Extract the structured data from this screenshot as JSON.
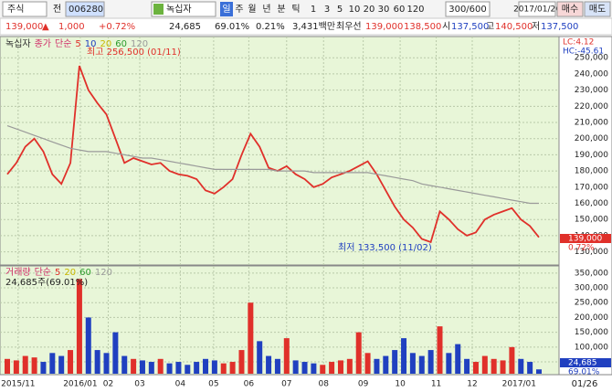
{
  "toolbar": {
    "market": "주식",
    "scope": "전",
    "code": "006280",
    "name": "녹십자",
    "periods": [
      "일",
      "주",
      "월",
      "년",
      "분",
      "틱",
      "1",
      "3",
      "5",
      "10",
      "20",
      "30",
      "60",
      "120"
    ],
    "count": "300/600",
    "date": "2017/01/26",
    "buy": "매수",
    "sell": "매도"
  },
  "quote": {
    "price": "139,000",
    "arrow": "▲",
    "change": "1,000",
    "change_pct": "+0.72%",
    "volume": "24,685",
    "volume_ratio": "69.01%",
    "turnover": "0.21%",
    "amount": "3,431백만",
    "best_label": "최우선",
    "ask": "139,000",
    "bid": "138,500",
    "open_label": "시",
    "open": "137,500",
    "high_label": "고",
    "high": "140,500",
    "low_label": "저",
    "low": "137,500"
  },
  "chart_data": {
    "type": "line",
    "legend": [
      "녹십자",
      "종가",
      "단순",
      "5",
      "10",
      "20",
      "60",
      "120"
    ],
    "series": [
      {
        "name": "종가",
        "color": "#e0302a",
        "values": [
          178000,
          185000,
          195000,
          200000,
          192000,
          178000,
          172000,
          185000,
          245000,
          230000,
          222000,
          215000,
          200000,
          185000,
          188000,
          186000,
          184000,
          185000,
          180000,
          178000,
          177000,
          175000,
          168000,
          166000,
          170000,
          175000,
          190000,
          203000,
          195000,
          182000,
          180000,
          183000,
          178000,
          175000,
          170000,
          172000,
          176000,
          178000,
          180000,
          183000,
          186000,
          178000,
          168000,
          158000,
          150000,
          145000,
          138000,
          136000,
          155000,
          150000,
          144000,
          140000,
          142000,
          150000,
          153000,
          155000,
          157000,
          150000,
          146000,
          139000
        ]
      },
      {
        "name": "120",
        "color": "#9a9a9a",
        "values": [
          208000,
          206000,
          204000,
          202000,
          200000,
          198000,
          196000,
          194000,
          193000,
          192000,
          192000,
          192000,
          191000,
          190000,
          189000,
          188000,
          188000,
          187000,
          186000,
          185000,
          184000,
          183000,
          182000,
          181000,
          181000,
          181000,
          181000,
          181000,
          181000,
          181000,
          180000,
          180000,
          180000,
          180000,
          179000,
          179000,
          179000,
          179000,
          179000,
          179000,
          179000,
          178000,
          177000,
          176000,
          175000,
          174000,
          172000,
          171000,
          170000,
          169000,
          168000,
          167000,
          166000,
          165000,
          164000,
          163000,
          162000,
          161000,
          160000,
          160000
        ]
      }
    ],
    "ylim": [
      123000,
      262000
    ],
    "yticks": [
      {
        "value": 130000,
        "label": "130,000"
      },
      {
        "value": 140000,
        "label": "140,000"
      },
      {
        "value": 150000,
        "label": "150,000"
      },
      {
        "value": 160000,
        "label": "160,000"
      },
      {
        "value": 170000,
        "label": "170,000"
      },
      {
        "value": 180000,
        "label": "180,000"
      },
      {
        "value": 190000,
        "label": "190,000"
      },
      {
        "value": 200000,
        "label": "200,000"
      },
      {
        "value": 210000,
        "label": "210,000"
      },
      {
        "value": 220000,
        "label": "220,000"
      },
      {
        "value": 230000,
        "label": "230,000"
      },
      {
        "value": 240000,
        "label": "240,000"
      },
      {
        "value": 250000,
        "label": "250,000"
      }
    ],
    "xlim": [
      0,
      59
    ],
    "xticks": [
      {
        "value": 1.2,
        "label": "2015/11"
      },
      {
        "value": 8.1,
        "label": "2016/01"
      },
      {
        "value": 11.2,
        "label": "02"
      },
      {
        "value": 14.7,
        "label": "03"
      },
      {
        "value": 19.2,
        "label": "04"
      },
      {
        "value": 22.9,
        "label": "05"
      },
      {
        "value": 26.8,
        "label": "06"
      },
      {
        "value": 31,
        "label": "07"
      },
      {
        "value": 35.1,
        "label": "08"
      },
      {
        "value": 39.5,
        "label": "09"
      },
      {
        "value": 43.6,
        "label": "10"
      },
      {
        "value": 47.6,
        "label": "11"
      },
      {
        "value": 51.6,
        "label": "12"
      },
      {
        "value": 56.8,
        "label": "2017/01"
      }
    ],
    "last_date": "01/26",
    "high_note": "최고 256,500 (01/11)",
    "low_note": "최저 133,500 (11/02)",
    "lc": "LC:4.12",
    "hc": "HC:-45.61",
    "last_price": "139,000",
    "last_pct": "0.72%",
    "volume": {
      "legend": [
        "거래량",
        "단순",
        "5",
        "20",
        "60",
        "120"
      ],
      "info": "24,685주(69.01%)",
      "values": [
        60000,
        55000,
        70000,
        65000,
        50000,
        80000,
        70000,
        90000,
        330000,
        200000,
        90000,
        80000,
        150000,
        70000,
        60000,
        55000,
        50000,
        60000,
        45000,
        50000,
        40000,
        50000,
        60000,
        55000,
        45000,
        50000,
        90000,
        250000,
        120000,
        70000,
        60000,
        130000,
        55000,
        50000,
        45000,
        40000,
        50000,
        55000,
        60000,
        150000,
        80000,
        60000,
        70000,
        90000,
        130000,
        80000,
        70000,
        90000,
        170000,
        80000,
        110000,
        60000,
        50000,
        70000,
        60000,
        55000,
        100000,
        60000,
        50000,
        24685
      ],
      "ylim": [
        10000,
        368000
      ],
      "yticks": [
        {
          "value": 50000,
          "label": "50,000"
        },
        {
          "value": 100000,
          "label": "100,000"
        },
        {
          "value": 150000,
          "label": "150,000"
        },
        {
          "value": 200000,
          "label": "200,000"
        },
        {
          "value": 250000,
          "label": "250,000"
        },
        {
          "value": 300000,
          "label": "300,000"
        },
        {
          "value": 350000,
          "label": "350,000"
        }
      ],
      "last": "24,685",
      "last_pct": "69.01%"
    }
  }
}
